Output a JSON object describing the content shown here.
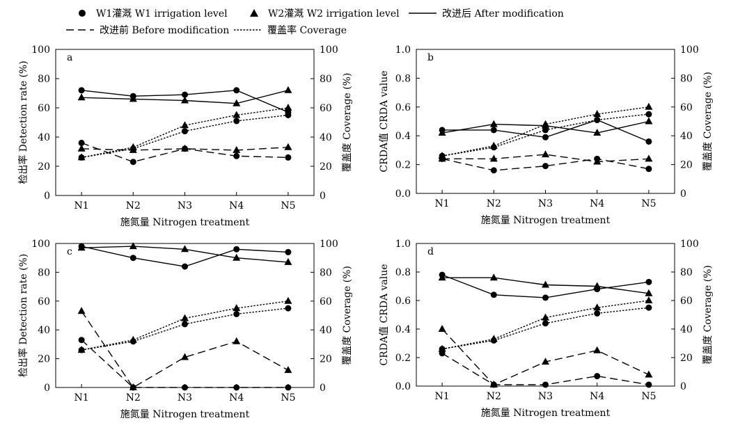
{
  "legend": {
    "items": [
      {
        "key": "w1",
        "label": "W1灌溉 W1 irrigation level",
        "kind": "marker",
        "marker": "circle"
      },
      {
        "key": "w2",
        "label": "W2灌溉 W2 irrigation level",
        "kind": "marker",
        "marker": "triangle"
      },
      {
        "key": "after",
        "label": "改进后 After modification",
        "kind": "line",
        "dash": "solid"
      },
      {
        "key": "before",
        "label": "改进前 Before modification",
        "kind": "line",
        "dash": "dashed"
      },
      {
        "key": "coverage",
        "label": "覆盖率 Coverage",
        "kind": "line",
        "dash": "dotted"
      }
    ]
  },
  "chart_data": [
    {
      "id": "a",
      "panel_label": "a",
      "type": "line",
      "categories": [
        "N1",
        "N2",
        "N3",
        "N4",
        "N5"
      ],
      "xlabel": "施氮量 Nitrogen treatment",
      "ylabel": "检出率 Detection rate (%)",
      "ylim": [
        0,
        100
      ],
      "yticks": [
        "0",
        "20",
        "40",
        "60",
        "80",
        "100"
      ],
      "y2label": "覆盖度 Coverage (%)",
      "y2lim": [
        0,
        100
      ],
      "y2ticks": [
        "0",
        "20",
        "40",
        "60",
        "80",
        "100"
      ],
      "series": [
        {
          "irrigation": "W1",
          "mod": "after",
          "axis": "y",
          "values": [
            72,
            68,
            69,
            72,
            57
          ]
        },
        {
          "irrigation": "W2",
          "mod": "after",
          "axis": "y",
          "values": [
            67,
            66,
            65,
            63,
            72
          ]
        },
        {
          "irrigation": "W1",
          "mod": "before",
          "axis": "y",
          "values": [
            36,
            23,
            32,
            27,
            26
          ]
        },
        {
          "irrigation": "W2",
          "mod": "before",
          "axis": "y",
          "values": [
            32,
            31,
            32,
            31,
            33
          ]
        },
        {
          "irrigation": "W1",
          "mod": "coverage",
          "axis": "y2",
          "values": [
            26,
            32,
            44,
            51,
            55
          ]
        },
        {
          "irrigation": "W2",
          "mod": "coverage",
          "axis": "y2",
          "values": [
            26,
            33,
            48,
            55,
            60
          ]
        }
      ]
    },
    {
      "id": "b",
      "panel_label": "b",
      "type": "line",
      "categories": [
        "N1",
        "N2",
        "N3",
        "N4",
        "N5"
      ],
      "xlabel": "施氮量 Nitrogen treatment",
      "ylabel": "CRDA值 CRDA value",
      "ylim": [
        0,
        1
      ],
      "yticks": [
        "0.0",
        "0.2",
        "0.4",
        "0.6",
        "0.8",
        "1.0"
      ],
      "y2label": "覆盖度 Coverage (%)",
      "y2lim": [
        0,
        100
      ],
      "y2ticks": [
        "0",
        "20",
        "40",
        "60",
        "80",
        "100"
      ],
      "series": [
        {
          "irrigation": "W1",
          "mod": "after",
          "axis": "y",
          "values": [
            0.44,
            0.44,
            0.39,
            0.51,
            0.36
          ]
        },
        {
          "irrigation": "W2",
          "mod": "after",
          "axis": "y",
          "values": [
            0.42,
            0.48,
            0.47,
            0.42,
            0.5
          ]
        },
        {
          "irrigation": "W1",
          "mod": "before",
          "axis": "y",
          "values": [
            0.24,
            0.16,
            0.19,
            0.24,
            0.17
          ]
        },
        {
          "irrigation": "W2",
          "mod": "before",
          "axis": "y",
          "values": [
            0.24,
            0.24,
            0.27,
            0.22,
            0.24
          ]
        },
        {
          "irrigation": "W1",
          "mod": "coverage",
          "axis": "y2",
          "values": [
            26,
            32,
            44,
            51,
            55
          ]
        },
        {
          "irrigation": "W2",
          "mod": "coverage",
          "axis": "y2",
          "values": [
            26,
            33,
            48,
            55,
            60
          ]
        }
      ]
    },
    {
      "id": "c",
      "panel_label": "c",
      "type": "line",
      "categories": [
        "N1",
        "N2",
        "N3",
        "N4",
        "N5"
      ],
      "xlabel": "施氮量 Nitrogen treatment",
      "ylabel": "检出率 Detection rate (%)",
      "ylim": [
        0,
        100
      ],
      "yticks": [
        "0",
        "20",
        "40",
        "60",
        "80",
        "100"
      ],
      "y2label": "覆盖度 Coverage (%)",
      "y2lim": [
        0,
        100
      ],
      "y2ticks": [
        "0",
        "20",
        "40",
        "60",
        "80",
        "100"
      ],
      "series": [
        {
          "irrigation": "W1",
          "mod": "after",
          "axis": "y",
          "values": [
            98,
            90,
            84,
            96,
            94
          ]
        },
        {
          "irrigation": "W2",
          "mod": "after",
          "axis": "y",
          "values": [
            97,
            98,
            96,
            90,
            87
          ]
        },
        {
          "irrigation": "W1",
          "mod": "before",
          "axis": "y",
          "values": [
            33,
            0,
            0,
            0,
            0
          ]
        },
        {
          "irrigation": "W2",
          "mod": "before",
          "axis": "y",
          "values": [
            53,
            0,
            21,
            32,
            12
          ]
        },
        {
          "irrigation": "W1",
          "mod": "coverage",
          "axis": "y2",
          "values": [
            26,
            32,
            44,
            51,
            55
          ]
        },
        {
          "irrigation": "W2",
          "mod": "coverage",
          "axis": "y2",
          "values": [
            26,
            33,
            48,
            55,
            60
          ]
        }
      ]
    },
    {
      "id": "d",
      "panel_label": "d",
      "type": "line",
      "categories": [
        "N1",
        "N2",
        "N3",
        "N4",
        "N5"
      ],
      "xlabel": "施氮量 Nitrogen treatment",
      "ylabel": "CRDA值 CRDA value",
      "ylim": [
        0,
        1
      ],
      "yticks": [
        "0.0",
        "0.2",
        "0.4",
        "0.6",
        "0.8",
        "1.0"
      ],
      "y2label": "覆盖度 Coverage (%)",
      "y2lim": [
        0,
        100
      ],
      "y2ticks": [
        "0",
        "20",
        "40",
        "60",
        "80",
        "100"
      ],
      "series": [
        {
          "irrigation": "W1",
          "mod": "after",
          "axis": "y",
          "values": [
            0.78,
            0.64,
            0.62,
            0.68,
            0.73
          ]
        },
        {
          "irrigation": "W2",
          "mod": "after",
          "axis": "y",
          "values": [
            0.76,
            0.76,
            0.71,
            0.7,
            0.65
          ]
        },
        {
          "irrigation": "W1",
          "mod": "before",
          "axis": "y",
          "values": [
            0.23,
            0.01,
            0.01,
            0.07,
            0.01
          ]
        },
        {
          "irrigation": "W2",
          "mod": "before",
          "axis": "y",
          "values": [
            0.4,
            0.01,
            0.17,
            0.25,
            0.08
          ]
        },
        {
          "irrigation": "W1",
          "mod": "coverage",
          "axis": "y2",
          "values": [
            26,
            32,
            44,
            51,
            55
          ]
        },
        {
          "irrigation": "W2",
          "mod": "coverage",
          "axis": "y2",
          "values": [
            26,
            33,
            48,
            55,
            60
          ]
        }
      ]
    }
  ]
}
